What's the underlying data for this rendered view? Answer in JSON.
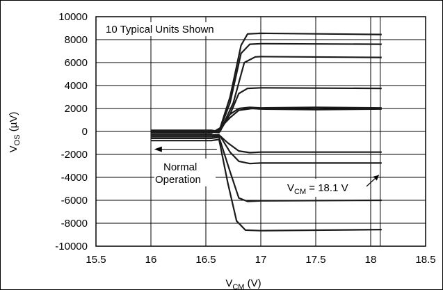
{
  "chart_data": {
    "type": "line",
    "xlabel": "V",
    "xlabel_sub": "CM",
    "xlabel_unit": " (V)",
    "ylabel": "V",
    "ylabel_sub": "OS",
    "ylabel_unit": " (µV)",
    "xlim": [
      15.5,
      18.5
    ],
    "ylim": [
      -10000,
      10000
    ],
    "xticks": [
      15.5,
      16,
      16.5,
      17,
      17.5,
      18,
      18.5
    ],
    "xtick_labels": [
      "15.5",
      "16",
      "16.5",
      "17",
      "17.5",
      "18",
      "18.5"
    ],
    "yticks": [
      10000,
      8000,
      6000,
      4000,
      2000,
      0,
      -2000,
      -4000,
      -6000,
      -8000,
      -10000
    ],
    "ytick_labels": [
      "10000",
      "8000",
      "6000",
      "4000",
      "2000",
      "0",
      "-2000",
      "-4000",
      "-6000",
      "-8000",
      "-10000"
    ],
    "grid": true,
    "annotations": {
      "units": "10 Typical Units Shown",
      "normal_line1": "Normal",
      "normal_line2": "Operation",
      "vcm_prefix": "V",
      "vcm_sub": "CM",
      "vcm_suffix": " = 18.1 V"
    },
    "series": [
      {
        "values": [
          [
            16,
            100
          ],
          [
            16.55,
            100
          ],
          [
            16.62,
            0
          ],
          [
            16.72,
            3000
          ],
          [
            16.82,
            7500
          ],
          [
            16.88,
            8500
          ],
          [
            17,
            8550
          ],
          [
            18.1,
            8450
          ]
        ]
      },
      {
        "values": [
          [
            16,
            50
          ],
          [
            16.55,
            50
          ],
          [
            16.62,
            -50
          ],
          [
            16.72,
            2500
          ],
          [
            16.82,
            6800
          ],
          [
            16.9,
            7600
          ],
          [
            17,
            7650
          ],
          [
            18.1,
            7600
          ]
        ]
      },
      {
        "values": [
          [
            16,
            0
          ],
          [
            16.55,
            0
          ],
          [
            16.63,
            0
          ],
          [
            16.75,
            2500
          ],
          [
            16.85,
            6000
          ],
          [
            16.95,
            6500
          ],
          [
            17,
            6520
          ],
          [
            18.1,
            6450
          ]
        ]
      },
      {
        "values": [
          [
            16,
            -50
          ],
          [
            16.55,
            -50
          ],
          [
            16.62,
            -100
          ],
          [
            16.72,
            1500
          ],
          [
            16.8,
            3300
          ],
          [
            16.88,
            3750
          ],
          [
            17,
            3800
          ],
          [
            18.1,
            3750
          ]
        ]
      },
      {
        "values": [
          [
            16,
            -100
          ],
          [
            16.55,
            -100
          ],
          [
            16.63,
            200
          ],
          [
            16.72,
            1500
          ],
          [
            16.8,
            2000
          ],
          [
            16.9,
            2100
          ],
          [
            17,
            2050
          ],
          [
            17.5,
            2100
          ],
          [
            18.1,
            2050
          ]
        ]
      },
      {
        "values": [
          [
            16,
            -150
          ],
          [
            16.55,
            -150
          ],
          [
            16.63,
            300
          ],
          [
            16.72,
            1200
          ],
          [
            16.8,
            1850
          ],
          [
            16.92,
            2000
          ],
          [
            17,
            1950
          ],
          [
            17.5,
            1900
          ],
          [
            18.1,
            1950
          ]
        ]
      },
      {
        "values": [
          [
            16,
            -300
          ],
          [
            16.55,
            -300
          ],
          [
            16.62,
            -300
          ],
          [
            16.7,
            -1000
          ],
          [
            16.8,
            -1700
          ],
          [
            16.9,
            -1850
          ],
          [
            17,
            -1800
          ],
          [
            18.1,
            -1800
          ]
        ]
      },
      {
        "values": [
          [
            16,
            -450
          ],
          [
            16.55,
            -450
          ],
          [
            16.63,
            -400
          ],
          [
            16.72,
            -1800
          ],
          [
            16.8,
            -2600
          ],
          [
            16.9,
            -2800
          ],
          [
            17,
            -2750
          ],
          [
            18.1,
            -2750
          ]
        ]
      },
      {
        "values": [
          [
            16,
            -600
          ],
          [
            16.55,
            -600
          ],
          [
            16.62,
            -500
          ],
          [
            16.72,
            -3500
          ],
          [
            16.8,
            -5800
          ],
          [
            16.88,
            -6100
          ],
          [
            17,
            -6050
          ],
          [
            18.1,
            -6000
          ]
        ]
      },
      {
        "values": [
          [
            16,
            -800
          ],
          [
            16.55,
            -800
          ],
          [
            16.62,
            -700
          ],
          [
            16.7,
            -4500
          ],
          [
            16.78,
            -7800
          ],
          [
            16.86,
            -8600
          ],
          [
            17,
            -8650
          ],
          [
            18.1,
            -8550
          ]
        ]
      }
    ]
  }
}
